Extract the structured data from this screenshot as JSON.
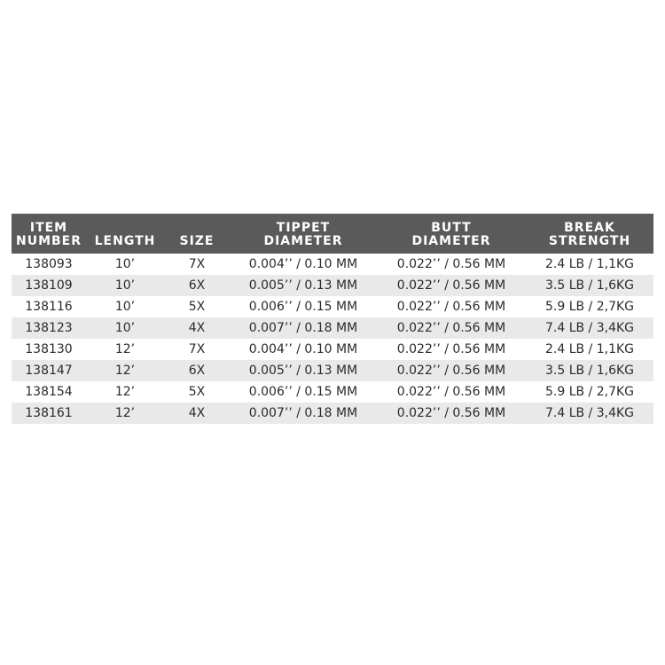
{
  "table": {
    "headers": [
      {
        "line1": "ITEM",
        "line2": "NUMBER"
      },
      {
        "line1": "LENGTH",
        "line2": ""
      },
      {
        "line1": "SIZE",
        "line2": ""
      },
      {
        "line1": "TIPPET",
        "line2": "DIAMETER"
      },
      {
        "line1": "BUTT",
        "line2": "DIAMETER"
      },
      {
        "line1": "BREAK",
        "line2": "STRENGTH"
      }
    ],
    "rows": [
      [
        "138093",
        "10’",
        "7X",
        "0.004’’ / 0.10 MM",
        "0.022’’ / 0.56 MM",
        "2.4 LB / 1,1KG"
      ],
      [
        "138109",
        "10’",
        "6X",
        "0.005’’ / 0.13 MM",
        "0.022’’ / 0.56 MM",
        "3.5 LB / 1,6KG"
      ],
      [
        "138116",
        "10’",
        "5X",
        "0.006’’ / 0.15 MM",
        "0.022’’ / 0.56 MM",
        "5.9 LB / 2,7KG"
      ],
      [
        "138123",
        "10’",
        "4X",
        "0.007’’ / 0.18 MM",
        "0.022’’ / 0.56 MM",
        "7.4 LB / 3,4KG"
      ],
      [
        "138130",
        "12’",
        "7X",
        "0.004’’ / 0.10 MM",
        "0.022’’ / 0.56 MM",
        "2.4 LB / 1,1KG"
      ],
      [
        "138147",
        "12’",
        "6X",
        "0.005’’ / 0.13 MM",
        "0.022’’ / 0.56 MM",
        "3.5 LB / 1,6KG"
      ],
      [
        "138154",
        "12’",
        "5X",
        "0.006’’ / 0.15 MM",
        "0.022’’ / 0.56 MM",
        "5.9 LB / 2,7KG"
      ],
      [
        "138161",
        "12’",
        "4X",
        "0.007’’ / 0.18 MM",
        "0.022’’ / 0.56 MM",
        "7.4 LB / 3,4KG"
      ]
    ]
  },
  "colors": {
    "header_background": "#5a5a5a",
    "header_text": "#ffffff",
    "stripe_background": "#e9e9e9",
    "body_text": "#2b2b2b"
  }
}
